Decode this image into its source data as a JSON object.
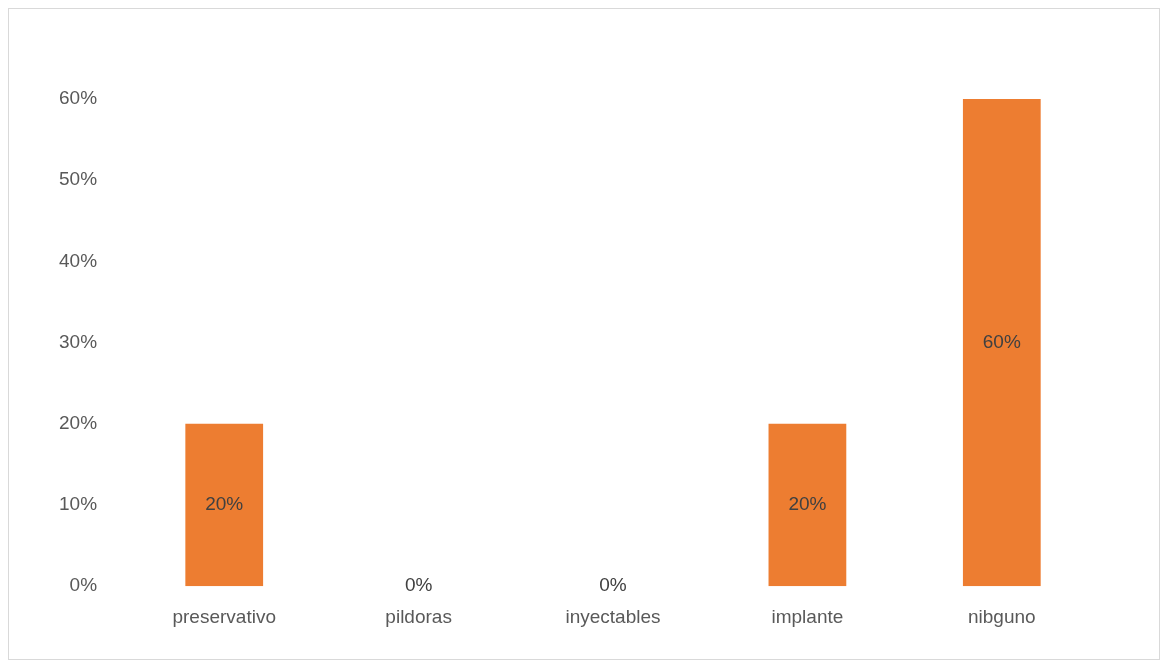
{
  "chart_data": {
    "type": "bar",
    "categories": [
      "preservativo",
      "pildoras",
      "inyectables",
      "implante",
      "nibguno"
    ],
    "values": [
      20,
      0,
      0,
      20,
      60
    ],
    "color": "#ed7d31",
    "value_labels": [
      "20%",
      "0%",
      "0%",
      "20%",
      "60%"
    ],
    "ylim": [
      0,
      60
    ],
    "yticks": [
      {
        "value": 0,
        "label": "0%"
      },
      {
        "value": 10,
        "label": "10%"
      },
      {
        "value": 20,
        "label": "20%"
      },
      {
        "value": 30,
        "label": "30%"
      },
      {
        "value": 40,
        "label": "40%"
      },
      {
        "value": 50,
        "label": "50%"
      },
      {
        "value": 60,
        "label": "60%"
      }
    ],
    "grid": false,
    "legend": false
  }
}
